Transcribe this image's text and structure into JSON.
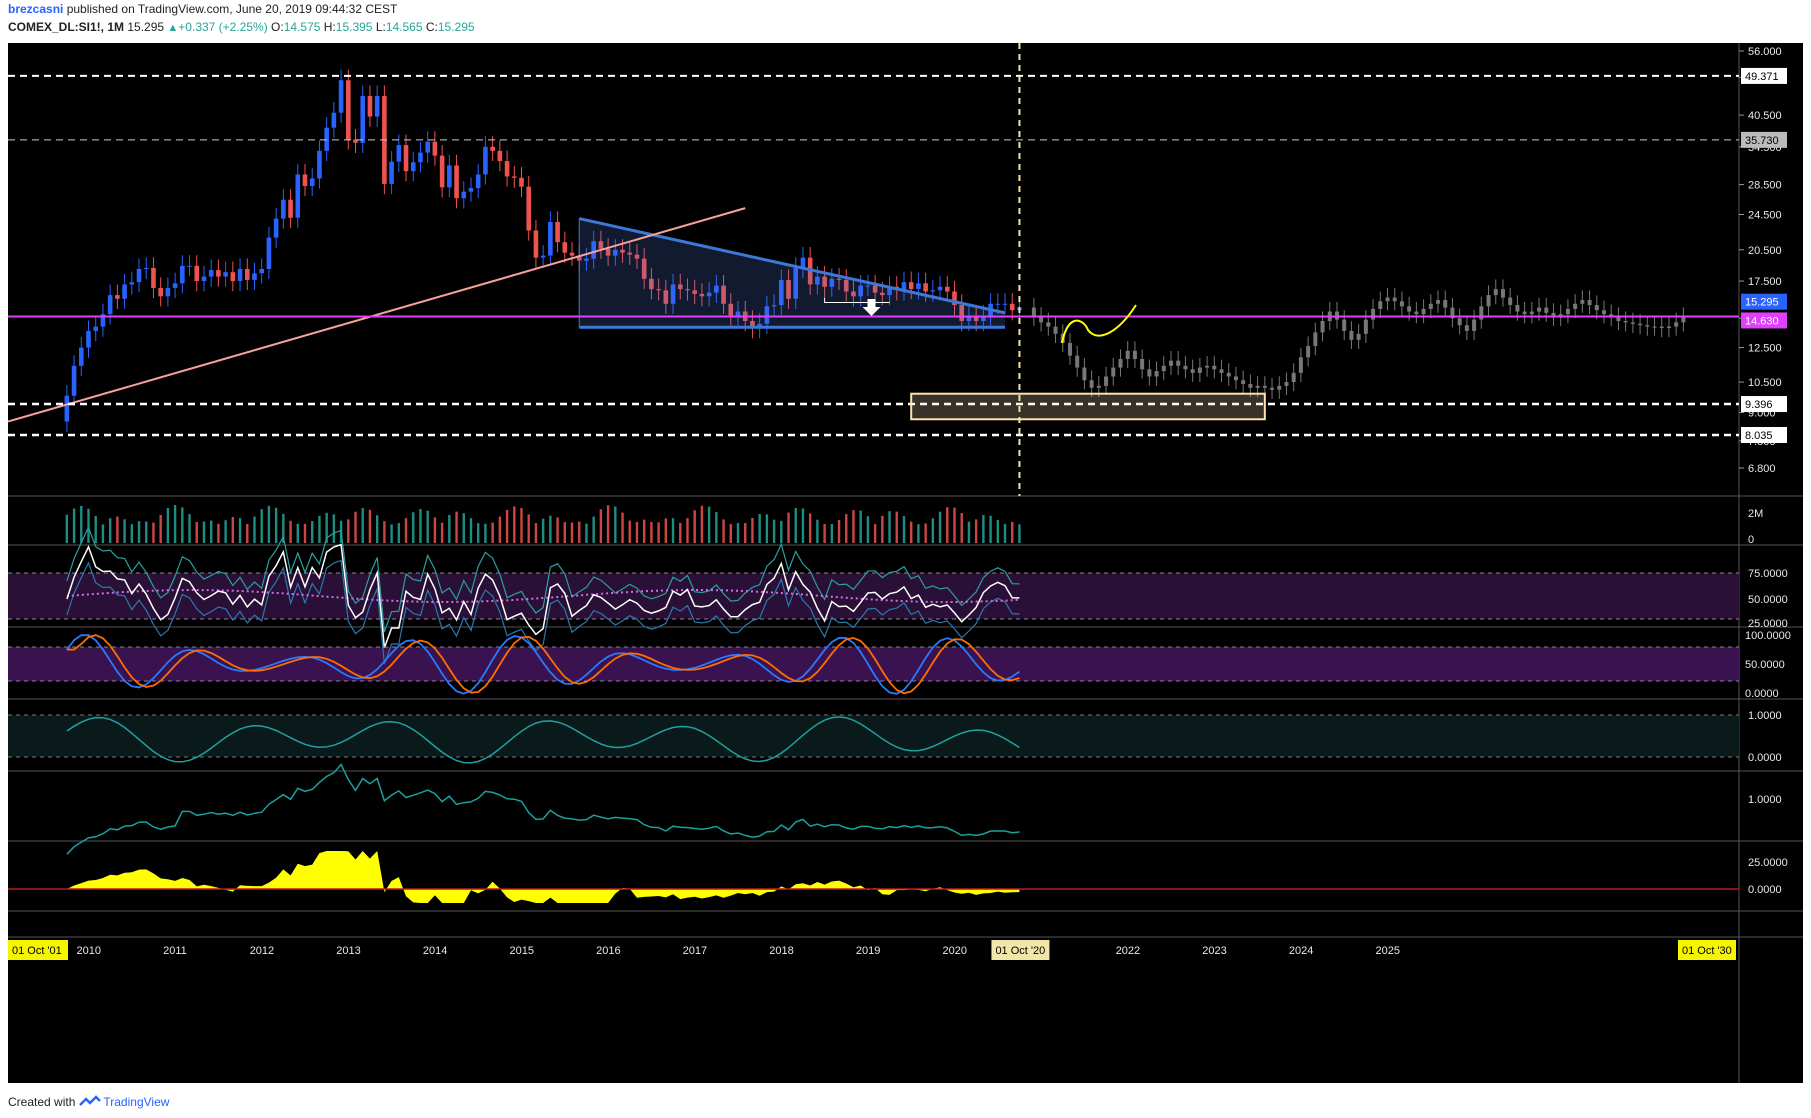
{
  "header": {
    "author": "brezcasni",
    "published": " published on TradingView.com, June 20, 2019 09:44:32 CEST",
    "symbol": "COMEX_DL:SI1!, 1M",
    "last": "15.295",
    "change": "+0.337 (+2.25%)",
    "o_label": "O:",
    "o_val": "14.575",
    "h_label": "H:",
    "h_val": "15.395",
    "l_label": "L:",
    "l_val": "14.565",
    "c_label": "C:",
    "c_val": "15.295"
  },
  "footer": {
    "created": "Created with",
    "brand": "TradingView"
  },
  "colors": {
    "bg": "#000000",
    "up": "#2962ff",
    "down": "#ef5350",
    "projection": "#777777",
    "trend": "#f7a19a",
    "triangle": "#3c78d8",
    "support": "#e040fb",
    "yellow": "#ffff00"
  },
  "icons": {
    "marker": "down-arrow-icon",
    "brand_logo": "tradingview-logo-icon"
  },
  "chart_data": {
    "type": "candlestick",
    "timeframe": "1M",
    "scale": "log",
    "price_axis_ticks": [
      "56.000",
      "49.000",
      "40.500",
      "34.500",
      "28.500",
      "24.500",
      "20.500",
      "17.500",
      "14.500",
      "12.500",
      "10.500",
      "9.000",
      "7.800",
      "6.800"
    ],
    "price_labels": [
      {
        "text": "49.371",
        "value": 49.371
      },
      {
        "text": "35.730",
        "value": 35.73
      },
      {
        "text": "15.295",
        "value": 15.295
      },
      {
        "text": "14.630",
        "value": 14.63
      },
      {
        "text": "9.396",
        "value": 9.396
      },
      {
        "text": "8.035",
        "value": 8.035
      }
    ],
    "x_ticks": [
      "2010",
      "2011",
      "2012",
      "2013",
      "2014",
      "2015",
      "2016",
      "2017",
      "2018",
      "2019",
      "2020",
      "2021",
      "2022",
      "2023",
      "2024",
      "2025"
    ],
    "x_start_label": "01 Oct '01",
    "x_end_label": "01 Oct '30",
    "crosshair_label": "01 Oct '20",
    "candle_closes": [
      9.8,
      11.4,
      12.5,
      13.6,
      13.9,
      14.8,
      16.3,
      16.0,
      17.2,
      17.4,
      18.6,
      18.7,
      16.9,
      16.2,
      16.9,
      17.3,
      18.9,
      18.9,
      17.5,
      17.9,
      18.5,
      17.9,
      18.3,
      17.5,
      18.6,
      17.6,
      18.2,
      18.6,
      21.8,
      24.0,
      26.4,
      24.1,
      30.0,
      28.3,
      29.4,
      33.8,
      38.0,
      41.0,
      48.3,
      35.8,
      35.2,
      44.6,
      40.2,
      44.6,
      28.6,
      32.0,
      34.8,
      30.5,
      31.9,
      33.5,
      35.4,
      33.0,
      28.1,
      31.4,
      26.6,
      27.5,
      28.0,
      30.0,
      34.5,
      33.8,
      32.1,
      29.7,
      29.5,
      28.2,
      22.6,
      19.7,
      19.9,
      23.6,
      21.3,
      20.2,
      19.9,
      19.4,
      19.6,
      21.4,
      20.6,
      19.9,
      20.5,
      20.2,
      20.0,
      19.6,
      17.7,
      16.8,
      16.7,
      15.6,
      17.2,
      16.8,
      16.7,
      16.4,
      16.2,
      16.5,
      17.1,
      15.6,
      14.7,
      15.0,
      14.3,
      13.8,
      14.1,
      15.4,
      15.5,
      17.6,
      16.0,
      18.7,
      19.7,
      17.2,
      17.9,
      17.0,
      17.7,
      17.6,
      16.6,
      16.2,
      17.1,
      17.1,
      16.5,
      16.3,
      17.0,
      16.7,
      17.4,
      16.8,
      17.3,
      16.6,
      16.7,
      17.0,
      16.6,
      15.5,
      14.3,
      14.6,
      14.3,
      14.7,
      15.6,
      15.6,
      15.6,
      15.1,
      15.3
    ],
    "projection_closes": [
      14.6,
      14.2,
      13.9,
      13.4,
      12.8,
      12.0,
      11.3,
      10.6,
      10.2,
      10.3,
      10.8,
      11.3,
      11.8,
      12.3,
      11.8,
      11.2,
      10.8,
      11.1,
      11.4,
      11.7,
      11.4,
      11.2,
      11.0,
      11.3,
      11.4,
      11.2,
      11.0,
      10.8,
      10.6,
      10.4,
      10.2,
      10.3,
      10.2,
      10.1,
      10.3,
      10.5,
      11.0,
      11.9,
      12.6,
      13.5,
      14.3,
      15.0,
      14.4,
      13.6,
      13.0,
      13.4,
      14.4,
      15.2,
      15.8,
      16.1,
      15.8,
      15.4,
      15.0,
      14.8,
      15.2,
      15.6,
      15.9,
      15.3,
      14.5,
      14.0,
      13.6,
      14.4,
      15.4,
      16.3,
      16.8,
      16.1,
      15.5,
      15.0,
      14.8,
      15.0,
      15.3,
      14.9,
      14.6,
      14.8,
      15.2,
      15.6,
      15.9,
      15.5,
      15.1,
      14.8,
      14.6,
      14.3,
      14.2,
      14.1,
      14.0,
      13.9,
      13.9,
      13.8,
      13.9,
      14.2,
      14.6
    ],
    "drawings": [
      {
        "type": "trendline",
        "from": [
          "2009-10",
          8.65
        ],
        "to": [
          "2017-08",
          25.3
        ]
      },
      {
        "type": "horizontal",
        "value": 14.63
      },
      {
        "type": "horizontal_dashed",
        "value": 49.371
      },
      {
        "type": "horizontal_dashed",
        "value": 35.73
      },
      {
        "type": "horizontal_dashed",
        "value": 9.396
      },
      {
        "type": "horizontal_dashed",
        "value": 8.035
      },
      {
        "type": "triangle",
        "apex_price": 14.63
      },
      {
        "type": "box",
        "from_price": 8.7,
        "to_price": 9.9
      },
      {
        "type": "vertical_dashed",
        "date": "01 Oct '20"
      }
    ],
    "volume_axis_ticks": [
      "2M",
      "0"
    ],
    "rsi_axis_ticks": [
      "75.0000",
      "50.0000",
      "25.0000"
    ],
    "stoch_axis_ticks": [
      "100.0000",
      "50.0000",
      "0.0000"
    ],
    "osc3_axis_ticks": [
      "1.0000",
      "0.0000"
    ],
    "osc4_axis_ticks": [
      "1.0000"
    ],
    "osc5_axis_ticks": [
      "25.0000",
      "0.0000"
    ]
  }
}
